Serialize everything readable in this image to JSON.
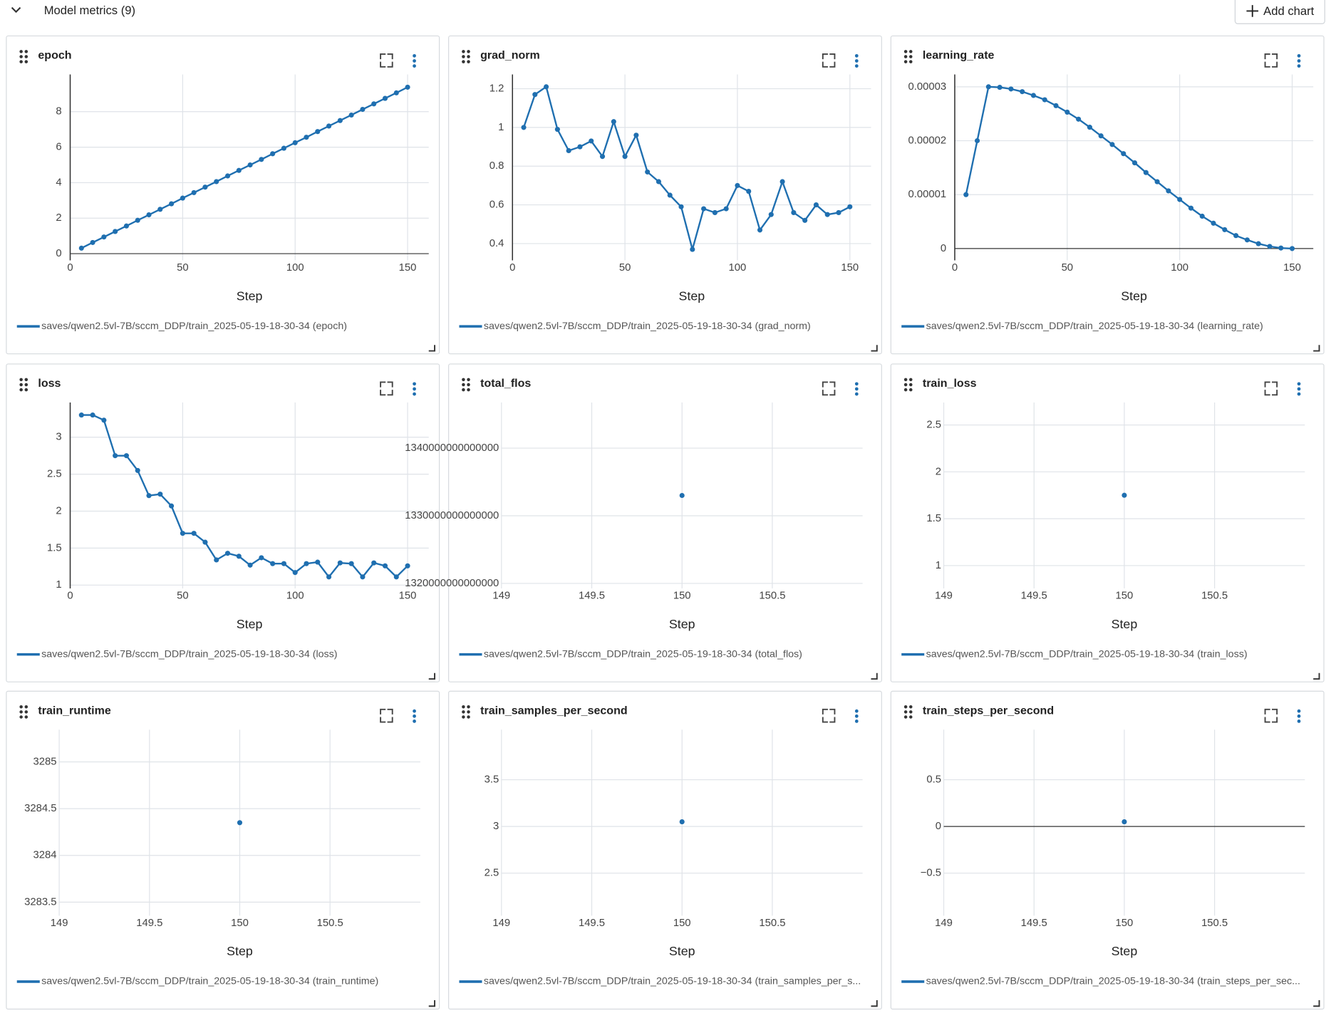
{
  "header": {
    "title": "Model metrics (9)",
    "add_chart": "Add chart"
  },
  "chart_data": [
    {
      "type": "line",
      "title": "epoch",
      "x_label": "Step",
      "grid": true,
      "xlim": [
        0,
        159.4
      ],
      "xticks": [
        0,
        50,
        100,
        150
      ],
      "ylim": [
        -0.38,
        10.1
      ],
      "yticks": [
        0,
        2,
        4,
        6,
        8
      ],
      "x": [
        5,
        10,
        15,
        20,
        25,
        30,
        35,
        40,
        45,
        50,
        55,
        60,
        65,
        70,
        75,
        80,
        85,
        90,
        95,
        100,
        105,
        110,
        115,
        120,
        125,
        130,
        135,
        140,
        145,
        150
      ],
      "series": [
        {
          "name": "saves/qwen2.5vl-7B/sccm_DDP/train_2025-05-19-18-30-34 (epoch)",
          "color": "#1f6fb0",
          "values": [
            0.31,
            0.63,
            0.94,
            1.25,
            1.56,
            1.88,
            2.19,
            2.5,
            2.81,
            3.13,
            3.44,
            3.75,
            4.06,
            4.38,
            4.69,
            5,
            5.31,
            5.63,
            5.94,
            6.25,
            6.56,
            6.88,
            7.19,
            7.5,
            7.81,
            8.13,
            8.44,
            8.75,
            9.06,
            9.38
          ]
        }
      ]
    },
    {
      "type": "line",
      "title": "grad_norm",
      "x_label": "Step",
      "grid": true,
      "xlim": [
        0,
        159.4
      ],
      "xticks": [
        0,
        50,
        100,
        150
      ],
      "ylim": [
        0.313,
        1.274
      ],
      "yticks": [
        0.4,
        0.6,
        0.8,
        1,
        1.2
      ],
      "x": [
        5,
        10,
        15,
        20,
        25,
        30,
        35,
        40,
        45,
        50,
        55,
        60,
        65,
        70,
        75,
        80,
        85,
        90,
        95,
        100,
        105,
        110,
        115,
        120,
        125,
        130,
        135,
        140,
        145,
        150
      ],
      "series": [
        {
          "name": "saves/qwen2.5vl-7B/sccm_DDP/train_2025-05-19-18-30-34 (grad_norm)",
          "color": "#1f6fb0",
          "values": [
            1.0,
            1.17,
            1.21,
            0.99,
            0.88,
            0.9,
            0.93,
            0.85,
            1.03,
            0.85,
            0.96,
            0.77,
            0.72,
            0.65,
            0.59,
            0.37,
            0.58,
            0.56,
            0.58,
            0.7,
            0.67,
            0.47,
            0.55,
            0.72,
            0.56,
            0.52,
            0.6,
            0.55,
            0.56,
            0.59
          ]
        }
      ]
    },
    {
      "type": "line",
      "title": "learning_rate",
      "x_label": "Step",
      "grid": true,
      "xlim": [
        0,
        159.4
      ],
      "xticks": [
        0,
        50,
        100,
        150
      ],
      "ylim": [
        -2.2e-06,
        3.23e-05
      ],
      "yticks": [
        0,
        1e-05,
        2e-05,
        3e-05
      ],
      "x": [
        5,
        10,
        15,
        20,
        25,
        30,
        35,
        40,
        45,
        50,
        55,
        60,
        65,
        70,
        75,
        80,
        85,
        90,
        95,
        100,
        105,
        110,
        115,
        120,
        125,
        130,
        135,
        140,
        145,
        150
      ],
      "series": [
        {
          "name": "saves/qwen2.5vl-7B/sccm_DDP/train_2025-05-19-18-30-34 (learning_rate)",
          "color": "#1f6fb0",
          "values": [
            1e-05,
            2e-05,
            3e-05,
            2.99e-05,
            2.96e-05,
            2.91e-05,
            2.84e-05,
            2.76e-05,
            2.65e-05,
            2.53e-05,
            2.4e-05,
            2.25e-05,
            2.09e-05,
            1.93e-05,
            1.76e-05,
            1.59e-05,
            1.41e-05,
            1.24e-05,
            1.07e-05,
            9.1e-06,
            7.5e-06,
            6e-06,
            4.7e-06,
            3.5e-06,
            2.4e-06,
            1.6e-06,
            9e-07,
            4e-07,
            1e-07,
            0
          ]
        }
      ]
    },
    {
      "type": "line",
      "title": "loss",
      "x_label": "Step",
      "grid": true,
      "xlim": [
        0,
        159.4
      ],
      "xticks": [
        0,
        50,
        100,
        150
      ],
      "ylim": [
        0.954,
        3.47
      ],
      "yticks": [
        1,
        1.5,
        2,
        2.5,
        3
      ],
      "x": [
        5,
        10,
        15,
        20,
        25,
        30,
        35,
        40,
        45,
        50,
        55,
        60,
        65,
        70,
        75,
        80,
        85,
        90,
        95,
        100,
        105,
        110,
        115,
        120,
        125,
        130,
        135,
        140,
        145,
        150
      ],
      "series": [
        {
          "name": "saves/qwen2.5vl-7B/sccm_DDP/train_2025-05-19-18-30-34 (loss)",
          "color": "#1f6fb0",
          "values": [
            3.3,
            3.3,
            3.23,
            2.75,
            2.75,
            2.55,
            2.21,
            2.23,
            2.07,
            1.7,
            1.7,
            1.58,
            1.34,
            1.43,
            1.39,
            1.27,
            1.37,
            1.29,
            1.29,
            1.17,
            1.29,
            1.31,
            1.11,
            1.3,
            1.29,
            1.11,
            1.3,
            1.26,
            1.11,
            1.26
          ]
        }
      ]
    },
    {
      "type": "line",
      "title": "total_flos",
      "x_label": "Step",
      "grid": true,
      "xlim": [
        149,
        151
      ],
      "xticks": [
        149,
        149.5,
        150,
        150.5
      ],
      "ylim": [
        1319250000000000,
        1346750000000000
      ],
      "yticks": [
        1320000000000000,
        1330000000000000,
        1340000000000000
      ],
      "x": [
        150
      ],
      "series": [
        {
          "name": "saves/qwen2.5vl-7B/sccm_DDP/train_2025-05-19-18-30-34 (total_flos)",
          "color": "#1f6fb0",
          "values": [
            1333000000000000
          ]
        }
      ]
    },
    {
      "type": "line",
      "title": "train_loss",
      "x_label": "Step",
      "grid": true,
      "xlim": [
        149,
        151
      ],
      "xticks": [
        149,
        149.5,
        150,
        150.5
      ],
      "ylim": [
        0.756,
        2.74
      ],
      "yticks": [
        1,
        1.5,
        2,
        2.5
      ],
      "x": [
        150
      ],
      "series": [
        {
          "name": "saves/qwen2.5vl-7B/sccm_DDP/train_2025-05-19-18-30-34 (train_loss)",
          "color": "#1f6fb0",
          "values": [
            1.75
          ]
        }
      ]
    },
    {
      "type": "line",
      "title": "train_runtime",
      "x_label": "Step",
      "grid": true,
      "xlim": [
        149,
        151
      ],
      "xticks": [
        149,
        149.5,
        150,
        150.5
      ],
      "ylim": [
        3283.355,
        3285.345
      ],
      "yticks": [
        3283.5,
        3284,
        3284.5,
        3285
      ],
      "x": [
        150
      ],
      "series": [
        {
          "name": "saves/qwen2.5vl-7B/sccm_DDP/train_2025-05-19-18-30-34 (train_runtime)",
          "color": "#1f6fb0",
          "values": [
            3284.35
          ]
        }
      ]
    },
    {
      "type": "line",
      "title": "train_samples_per_second",
      "x_label": "Step",
      "grid": true,
      "xlim": [
        149,
        151
      ],
      "xticks": [
        149,
        149.5,
        150,
        150.5
      ],
      "ylim": [
        2.045,
        4.036
      ],
      "yticks": [
        2.5,
        3,
        3.5
      ],
      "x": [
        150
      ],
      "series": [
        {
          "name": "saves/qwen2.5vl-7B/sccm_DDP/train_2025-05-19-18-30-34 (train_samples_per_s...",
          "color": "#1f6fb0",
          "values": [
            3.05
          ]
        }
      ]
    },
    {
      "type": "line",
      "title": "train_steps_per_second",
      "x_label": "Step",
      "grid": true,
      "xlim": [
        149,
        151
      ],
      "xticks": [
        149,
        149.5,
        150,
        150.5
      ],
      "ylim": [
        -0.955,
        1.036
      ],
      "yticks": [
        {
          "value": -0.5,
          "label": "−0.5"
        },
        0,
        0.5
      ],
      "x": [
        150
      ],
      "series": [
        {
          "name": "saves/qwen2.5vl-7B/sccm_DDP/train_2025-05-19-18-30-34 (train_steps_per_sec...",
          "color": "#1f6fb0",
          "values": [
            0.05
          ]
        }
      ]
    }
  ]
}
